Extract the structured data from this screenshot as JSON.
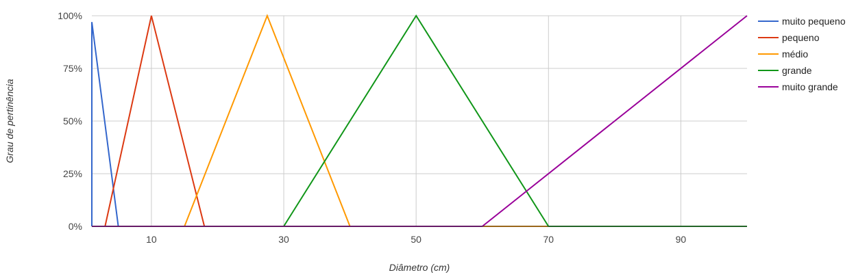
{
  "chart_data": {
    "type": "line",
    "title": "",
    "xlabel": "Diâmetro (cm)",
    "ylabel": "Grau de pertinência",
    "xlim": [
      1,
      100
    ],
    "ylim": [
      0,
      1
    ],
    "x_ticks": [
      10,
      30,
      50,
      70,
      90
    ],
    "x_tick_labels": [
      "10",
      "30",
      "50",
      "70",
      "90"
    ],
    "y_ticks": [
      0,
      0.25,
      0.5,
      0.75,
      1
    ],
    "y_tick_labels": [
      "0%",
      "25%",
      "50%",
      "75%",
      "100%"
    ],
    "grid": true,
    "legend_position": "right",
    "series": [
      {
        "name": "muito pequeno",
        "color": "#3366cc",
        "points": [
          [
            1,
            0
          ],
          [
            1,
            0.97
          ],
          [
            5,
            0
          ]
        ]
      },
      {
        "name": "pequeno",
        "color": "#dc3912",
        "points": [
          [
            3,
            0
          ],
          [
            10,
            1
          ],
          [
            18,
            0
          ]
        ]
      },
      {
        "name": "médio",
        "color": "#ff9900",
        "points": [
          [
            15,
            0
          ],
          [
            27.5,
            1
          ],
          [
            40,
            0
          ],
          [
            70,
            0
          ]
        ]
      },
      {
        "name": "grande",
        "color": "#109618",
        "points": [
          [
            30,
            0
          ],
          [
            50,
            1
          ],
          [
            70,
            0
          ],
          [
            100,
            0
          ]
        ]
      },
      {
        "name": "muito grande",
        "color": "#990099",
        "points": [
          [
            1,
            0
          ],
          [
            60,
            0
          ],
          [
            100,
            1
          ]
        ]
      }
    ]
  }
}
